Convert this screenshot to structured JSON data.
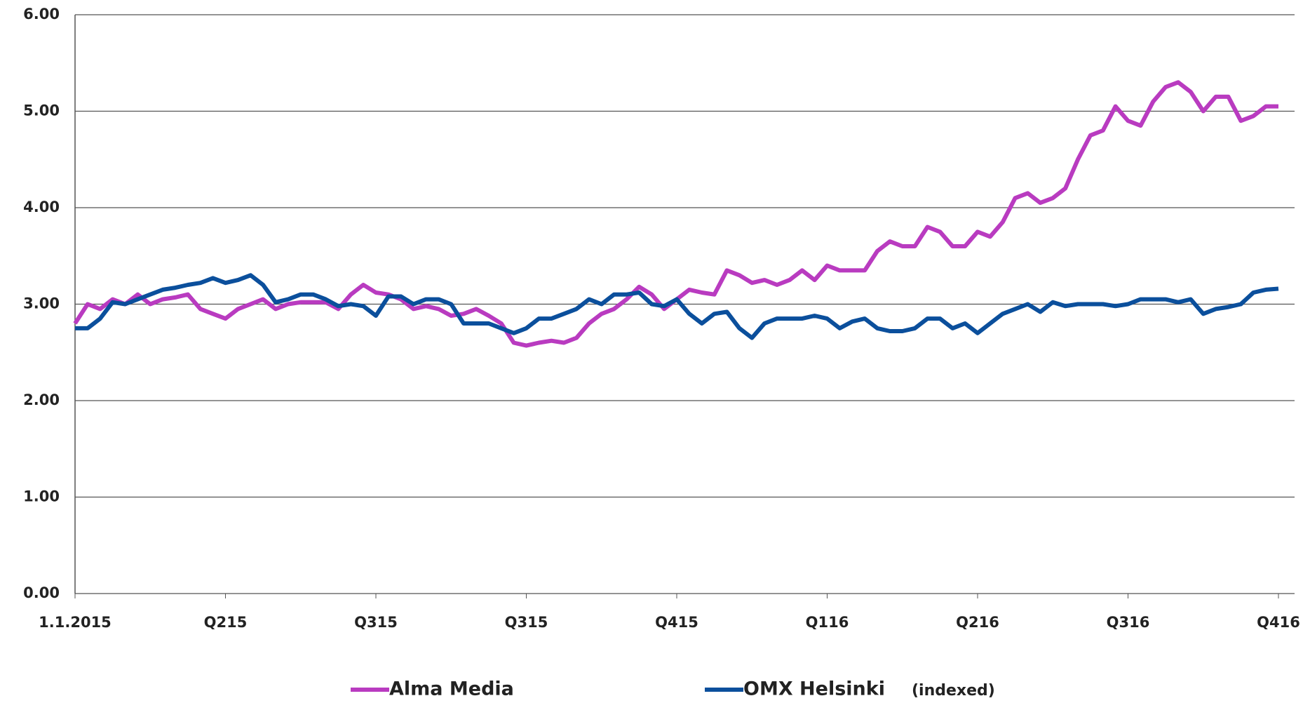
{
  "chart_data": {
    "type": "line",
    "categories": [
      "1.1.2015",
      null,
      null,
      null,
      null,
      null,
      null,
      null,
      null,
      null,
      null,
      null,
      "Q215",
      null,
      null,
      null,
      null,
      null,
      null,
      null,
      null,
      null,
      null,
      null,
      "Q315",
      null,
      null,
      null,
      null,
      null,
      null,
      null,
      null,
      null,
      null,
      null,
      "Q315",
      null,
      null,
      null,
      null,
      null,
      null,
      null,
      null,
      null,
      null,
      null,
      "Q415",
      null,
      null,
      null,
      null,
      null,
      null,
      null,
      null,
      null,
      null,
      null,
      "Q116",
      null,
      null,
      null,
      null,
      null,
      null,
      null,
      null,
      null,
      null,
      null,
      "Q216",
      null,
      null,
      null,
      null,
      null,
      null,
      null,
      null,
      null,
      null,
      null,
      "Q316",
      null,
      null,
      null,
      null,
      null,
      null,
      null,
      null,
      null,
      null,
      null,
      "Q416"
    ],
    "series": [
      {
        "name": "Alma Media",
        "color": "#b93bc0",
        "values": [
          2.8,
          3.0,
          2.95,
          3.05,
          3.0,
          3.1,
          3.0,
          3.05,
          3.07,
          3.1,
          2.95,
          2.9,
          2.85,
          2.95,
          3.0,
          3.05,
          2.95,
          3.0,
          3.02,
          3.02,
          3.02,
          2.95,
          3.1,
          3.2,
          3.12,
          3.1,
          3.05,
          2.95,
          2.98,
          2.95,
          2.88,
          2.9,
          2.95,
          2.88,
          2.8,
          2.6,
          2.57,
          2.6,
          2.62,
          2.6,
          2.65,
          2.8,
          2.9,
          2.95,
          3.05,
          3.18,
          3.1,
          2.95,
          3.05,
          3.15,
          3.12,
          3.1,
          3.35,
          3.3,
          3.22,
          3.25,
          3.2,
          3.25,
          3.35,
          3.25,
          3.4,
          3.35,
          3.35,
          3.35,
          3.55,
          3.65,
          3.6,
          3.6,
          3.8,
          3.75,
          3.6,
          3.6,
          3.75,
          3.7,
          3.85,
          4.1,
          4.15,
          4.05,
          4.1,
          4.2,
          4.5,
          4.75,
          4.8,
          5.05,
          4.9,
          4.85,
          5.1,
          5.25,
          5.3,
          5.2,
          5.0,
          5.15,
          5.15,
          4.9,
          4.95,
          5.05,
          5.05
        ]
      },
      {
        "name": "OMX Helsinki",
        "color": "#0b4f9c",
        "values": [
          2.75,
          2.75,
          2.85,
          3.02,
          3.0,
          3.05,
          3.1,
          3.15,
          3.17,
          3.2,
          3.22,
          3.27,
          3.22,
          3.25,
          3.3,
          3.2,
          3.02,
          3.05,
          3.1,
          3.1,
          3.05,
          2.98,
          3.0,
          2.98,
          2.88,
          3.08,
          3.08,
          3.0,
          3.05,
          3.05,
          3.0,
          2.8,
          2.8,
          2.8,
          2.75,
          2.7,
          2.75,
          2.85,
          2.85,
          2.9,
          2.95,
          3.05,
          3.0,
          3.1,
          3.1,
          3.12,
          3.0,
          2.98,
          3.05,
          2.9,
          2.8,
          2.9,
          2.92,
          2.75,
          2.65,
          2.8,
          2.85,
          2.85,
          2.85,
          2.88,
          2.85,
          2.75,
          2.82,
          2.85,
          2.75,
          2.72,
          2.72,
          2.75,
          2.85,
          2.85,
          2.75,
          2.8,
          2.7,
          2.8,
          2.9,
          2.95,
          3.0,
          2.92,
          3.02,
          2.98,
          3.0,
          3.0,
          3.0,
          2.98,
          3.0,
          3.05,
          3.05,
          3.05,
          3.02,
          3.05,
          2.9,
          2.95,
          2.97,
          3.0,
          3.12,
          3.15,
          3.16
        ]
      }
    ],
    "annotation": "(indexed)",
    "ylim": [
      0,
      6
    ],
    "yticks": [
      {
        "value": 0,
        "label": "0.00"
      },
      {
        "value": 1,
        "label": "1.00"
      },
      {
        "value": 2,
        "label": "2.00"
      },
      {
        "value": 3,
        "label": "3.00"
      },
      {
        "value": 4,
        "label": "4.00"
      },
      {
        "value": 5,
        "label": "5.00"
      },
      {
        "value": 6,
        "label": "6.00"
      }
    ],
    "grid": true
  }
}
